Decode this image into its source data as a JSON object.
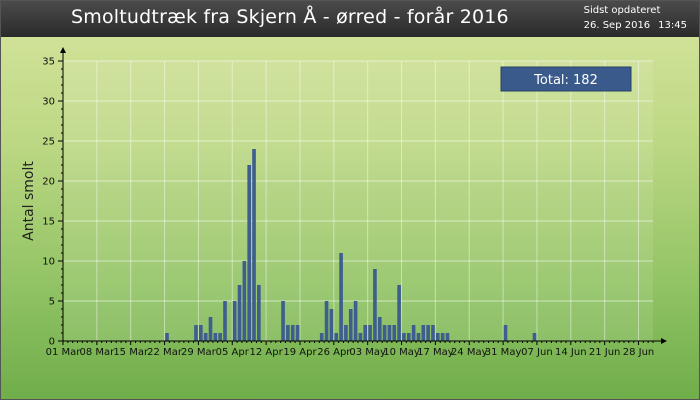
{
  "header": {
    "title": "Smoltudtræk fra Skjern Å - ørred - forår 2016",
    "updated_label": "Sidst opdateret",
    "updated_date": "26. Sep 2016",
    "updated_time": "13:45"
  },
  "colors": {
    "bar": "#3e5e8e",
    "total_box": "#3a5a8c",
    "title_bg": "#333333",
    "plot_bg_top": "#d4e39c",
    "plot_bg_bottom": "#7db553"
  },
  "chart_data": {
    "type": "bar",
    "title": "Smoltudtræk fra Skjern Å - ørred - forår 2016",
    "ylabel": "Antal smolt",
    "xlabel": "",
    "ylim": [
      0,
      35
    ],
    "yticks": [
      0,
      5,
      10,
      15,
      20,
      25,
      30,
      35
    ],
    "grid": true,
    "total_label": "Total: 182",
    "xtick_labels": [
      "01 Mar",
      "08 Mar",
      "15 Mar",
      "22 Mar",
      "29 Mar",
      "05 Apr",
      "12 Apr",
      "19 Apr",
      "26 Apr",
      "03 May",
      "10 May",
      "17 May",
      "24 May",
      "31 May",
      "07 Jun",
      "14 Jun",
      "21 Jun",
      "28 Jun"
    ],
    "day_count": 122,
    "days": [
      21,
      27,
      28,
      29,
      30,
      31,
      32,
      33,
      35,
      36,
      37,
      38,
      39,
      40,
      41,
      45,
      46,
      47,
      48,
      53,
      54,
      55,
      56,
      57,
      58,
      59,
      60,
      61,
      62,
      63,
      64,
      65,
      66,
      67,
      68,
      69,
      70,
      71,
      72,
      73,
      74,
      75,
      76,
      77,
      78,
      79,
      80,
      81,
      82,
      83,
      84,
      85,
      86,
      91,
      97
    ],
    "values": [
      1,
      2,
      2,
      1,
      3,
      1,
      1,
      5,
      5,
      7,
      10,
      22,
      24,
      7,
      0,
      5,
      2,
      2,
      2,
      1,
      5,
      4,
      1,
      11,
      2,
      4,
      5,
      1,
      2,
      2,
      9,
      3,
      2,
      2,
      2,
      7,
      1,
      1,
      2,
      1,
      2,
      2,
      2,
      1,
      1,
      1,
      0,
      0,
      0,
      0,
      0,
      0,
      0,
      2,
      1
    ]
  }
}
